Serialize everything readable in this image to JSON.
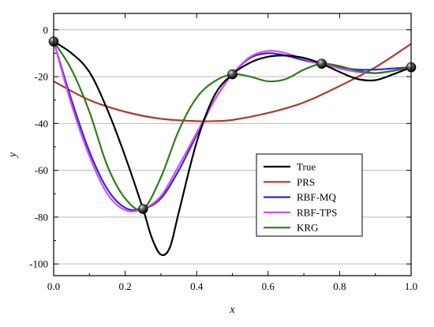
{
  "chart_data": {
    "type": "line",
    "xlabel": "x",
    "ylabel": "y",
    "xlim": [
      0,
      1
    ],
    "ylim": [
      -105,
      7
    ],
    "xticks": [
      0.0,
      0.2,
      0.4,
      0.6,
      0.8,
      1.0
    ],
    "xtick_labels": [
      "0.0",
      "0.2",
      "0.4",
      "0.6",
      "0.8",
      "1.0"
    ],
    "yticks": [
      0,
      -20,
      -40,
      -60,
      -80,
      -100
    ],
    "ytick_labels": [
      "0",
      "-20",
      "-40",
      "-60",
      "-80",
      "-100"
    ],
    "grid": "horizontal",
    "legend_position": "center-right",
    "sample_points": {
      "x": [
        0.0,
        0.25,
        0.5,
        0.75,
        1.0
      ],
      "y": [
        -5,
        -76.5,
        -19,
        -14.5,
        -16
      ]
    },
    "series": [
      {
        "name": "True",
        "color": "#000000",
        "x": [
          0.0,
          0.05,
          0.1,
          0.15,
          0.2,
          0.25,
          0.275,
          0.3,
          0.325,
          0.35,
          0.4,
          0.45,
          0.5,
          0.55,
          0.6,
          0.65,
          0.7,
          0.75,
          0.8,
          0.85,
          0.9,
          0.95,
          1.0
        ],
        "y": [
          -5,
          -10,
          -18,
          -34,
          -54,
          -76.5,
          -89,
          -96,
          -93,
          -78,
          -48,
          -28,
          -19,
          -14,
          -11.5,
          -11,
          -12,
          -14.5,
          -18,
          -21,
          -21.5,
          -19,
          -16
        ]
      },
      {
        "name": "PRS",
        "color": "#b03a2e",
        "x": [
          0.0,
          0.1,
          0.2,
          0.3,
          0.4,
          0.45,
          0.5,
          0.6,
          0.7,
          0.8,
          0.9,
          1.0
        ],
        "y": [
          -22,
          -30,
          -35,
          -38,
          -39,
          -39,
          -38.5,
          -35.5,
          -31,
          -24,
          -16,
          -6
        ]
      },
      {
        "name": "RBF-MQ",
        "color": "#2b2bd6",
        "x": [
          0.0,
          0.05,
          0.1,
          0.15,
          0.2,
          0.25,
          0.3,
          0.35,
          0.4,
          0.45,
          0.5,
          0.55,
          0.6,
          0.65,
          0.7,
          0.75,
          0.8,
          0.85,
          0.9,
          0.95,
          1.0
        ],
        "y": [
          -5,
          -30,
          -52,
          -68,
          -76,
          -76.5,
          -72,
          -60,
          -45,
          -30,
          -19,
          -12,
          -10,
          -11,
          -13,
          -14.5,
          -16,
          -17,
          -17,
          -16.5,
          -16
        ]
      },
      {
        "name": "RBF-TPS",
        "color": "#d94ff0",
        "x": [
          0.0,
          0.05,
          0.1,
          0.15,
          0.2,
          0.25,
          0.3,
          0.35,
          0.4,
          0.45,
          0.5,
          0.55,
          0.6,
          0.65,
          0.7,
          0.75,
          0.8,
          0.85,
          0.9,
          0.95,
          1.0
        ],
        "y": [
          -5,
          -32,
          -54,
          -70,
          -77,
          -76.5,
          -71,
          -58,
          -44,
          -30,
          -19,
          -11.5,
          -9,
          -10,
          -12.5,
          -14.5,
          -16.5,
          -18,
          -18.5,
          -17.5,
          -16
        ]
      },
      {
        "name": "KRG",
        "color": "#2e7d1a",
        "x": [
          0.0,
          0.05,
          0.1,
          0.15,
          0.2,
          0.25,
          0.3,
          0.35,
          0.4,
          0.45,
          0.5,
          0.55,
          0.6,
          0.65,
          0.7,
          0.75,
          0.8,
          0.85,
          0.9,
          0.95,
          1.0
        ],
        "y": [
          -5,
          -17,
          -35,
          -58,
          -72,
          -76.5,
          -63,
          -43,
          -29,
          -22,
          -19,
          -20,
          -22,
          -21,
          -17,
          -14.5,
          -15.5,
          -17.5,
          -18.5,
          -17.5,
          -16
        ]
      }
    ]
  }
}
